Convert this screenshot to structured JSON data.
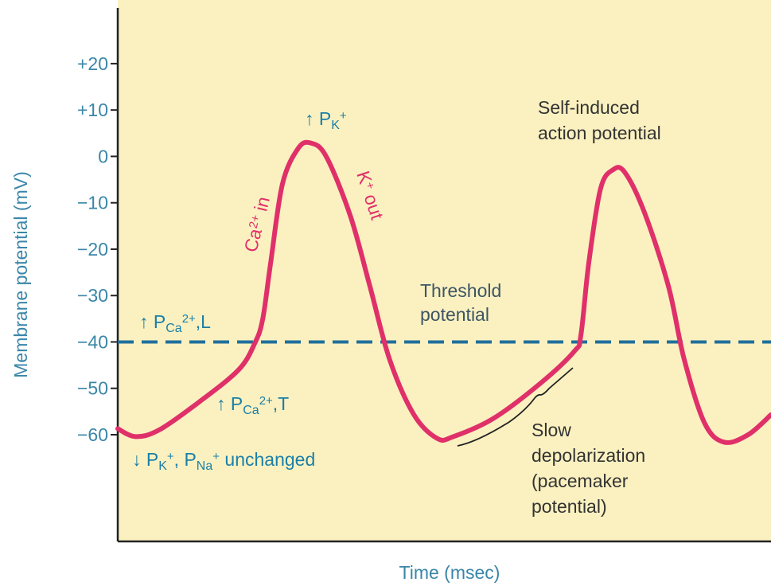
{
  "chart_data": {
    "type": "line",
    "y_label": "Membrane potential (mV)",
    "x_label": "Time (msec)",
    "xlim": [
      0,
      100
    ],
    "ylim": [
      -83,
      32
    ],
    "yticks": [
      {
        "value": 20,
        "label": "+20"
      },
      {
        "value": 10,
        "label": "+10"
      },
      0,
      {
        "value": -10,
        "label": "−10"
      },
      {
        "value": -20,
        "label": "−20"
      },
      {
        "value": -30,
        "label": "−30"
      },
      {
        "value": -40,
        "label": "−40"
      },
      {
        "value": -50,
        "label": "−50"
      },
      {
        "value": -60,
        "label": "−60"
      }
    ],
    "threshold": -40,
    "threshold_color": "#1f6f9a",
    "color": "#e0306a",
    "x": [
      0,
      2.7,
      6.3,
      12.4,
      18.5,
      21,
      22.2,
      23.4,
      25.2,
      27.6,
      29.5,
      31.9,
      35.6,
      38.6,
      41.6,
      45.3,
      48.9,
      51.4,
      57.5,
      64.8,
      69.9,
      70.9,
      72.1,
      73.9,
      75.8,
      77.6,
      80.6,
      84.3,
      86.7,
      89.8,
      92.8,
      96.5,
      100
    ],
    "values": [
      -58.7,
      -60.4,
      -59,
      -53,
      -46,
      -40.2,
      -35,
      -23,
      -6,
      1.7,
      2.9,
      0,
      -12.8,
      -28,
      -43.7,
      -55.6,
      -60.8,
      -60.4,
      -56.5,
      -48.8,
      -42,
      -38.5,
      -23,
      -7,
      -2.9,
      -3.4,
      -12,
      -28,
      -43.7,
      -57.4,
      -61.6,
      -60,
      -55.7
    ],
    "annotations": [
      {
        "color": "#1a7fa8",
        "parts": [
          {
            "text": "↑ P"
          },
          {
            "text": "Ca",
            "style": "sub"
          },
          {
            "text": "2+",
            "style": "sup"
          },
          {
            "text": ",L"
          }
        ]
      },
      {
        "color": "#1a7fa8",
        "parts": [
          {
            "text": "↑ P"
          },
          {
            "text": "Ca",
            "style": "sub"
          },
          {
            "text": "2+",
            "style": "sup"
          },
          {
            "text": ",T"
          }
        ]
      },
      {
        "color": "#1a7fa8",
        "parts": [
          {
            "text": "↓ P"
          },
          {
            "text": "K",
            "style": "sub"
          },
          {
            "text": "+",
            "style": "sup"
          },
          {
            "text": ", P"
          },
          {
            "text": "Na",
            "style": "sub"
          },
          {
            "text": "+",
            "style": "sup"
          },
          {
            "text": " unchanged"
          }
        ]
      },
      {
        "color": "#1a7fa8",
        "parts": [
          {
            "text": "↑ P"
          },
          {
            "text": "K",
            "style": "sub"
          },
          {
            "text": "+",
            "style": "sup"
          }
        ]
      },
      {
        "color": "#e0306a",
        "parts": [
          {
            "text": "Ca"
          },
          {
            "text": "2+",
            "style": "sup"
          },
          {
            "text": " in"
          }
        ]
      },
      {
        "color": "#e0306a",
        "parts": [
          {
            "text": "K"
          },
          {
            "text": "+",
            "style": "sup"
          },
          {
            "text": " out"
          }
        ]
      },
      {
        "color": "#3d5566",
        "lines": [
          "Threshold",
          "potential"
        ]
      },
      {
        "color": "#333333",
        "lines": [
          "Self-induced",
          "action potential"
        ]
      },
      {
        "color": "#333333",
        "lines": [
          "Slow",
          "depolarization",
          "(pacemaker",
          "potential)"
        ]
      }
    ]
  }
}
